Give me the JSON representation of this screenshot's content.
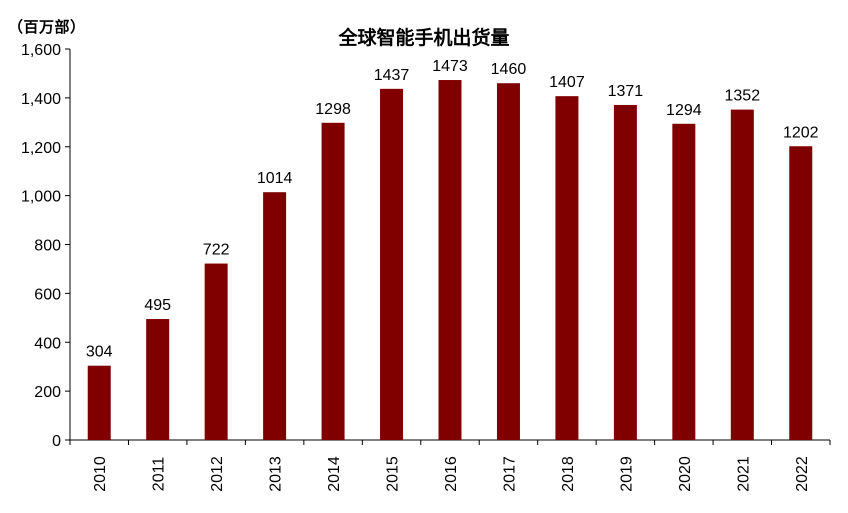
{
  "chart_data": {
    "type": "bar",
    "title": "全球智能手机出货量",
    "unit_label": "（百万部）",
    "xlabel": "",
    "ylabel": "",
    "ylim": [
      0,
      1600
    ],
    "ytick_step": 200,
    "ytick_labels": [
      "0",
      "200",
      "400",
      "600",
      "800",
      "1,000",
      "1,200",
      "1,400",
      "1,600"
    ],
    "grid": false,
    "legend": "none",
    "bar_color": "#800000",
    "categories": [
      "2010",
      "2011",
      "2012",
      "2013",
      "2014",
      "2015",
      "2016",
      "2017",
      "2018",
      "2019",
      "2020",
      "2021",
      "2022"
    ],
    "values": [
      304,
      495,
      722,
      1014,
      1298,
      1437,
      1473,
      1460,
      1407,
      1371,
      1294,
      1352,
      1202
    ]
  }
}
